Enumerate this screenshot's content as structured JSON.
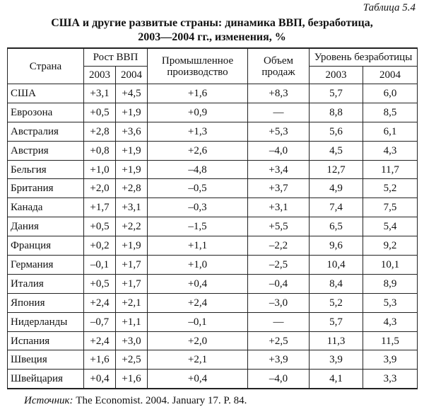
{
  "caption": "Таблица 5.4",
  "title": [
    "США и другие развитые страны: динамика ВВП, безработица,",
    "2003—2004 гг., изменения, %"
  ],
  "table": {
    "header": {
      "country": "Страна",
      "gdp": "Рост ВВП",
      "industry": "Промышленное производство",
      "sales": "Объем продаж",
      "unemployment": "Уровень безработицы",
      "years": [
        "2003",
        "2004",
        "2003",
        "2004"
      ]
    },
    "rows": [
      [
        "США",
        "+3,1",
        "+4,5",
        "+1,6",
        "+8,3",
        "5,7",
        "6,0"
      ],
      [
        "Еврозона",
        "+0,5",
        "+1,9",
        "+0,9",
        "—",
        "8,8",
        "8,5"
      ],
      [
        "Австралия",
        "+2,8",
        "+3,6",
        "+1,3",
        "+5,3",
        "5,6",
        "6,1"
      ],
      [
        "Австрия",
        "+0,8",
        "+1,9",
        "+2,6",
        "–4,0",
        "4,5",
        "4,3"
      ],
      [
        "Бельгия",
        "+1,0",
        "+1,9",
        "–4,8",
        "+3,4",
        "12,7",
        "11,7"
      ],
      [
        "Британия",
        "+2,0",
        "+2,8",
        "–0,5",
        "+3,7",
        "4,9",
        "5,2"
      ],
      [
        "Канада",
        "+1,7",
        "+3,1",
        "–0,3",
        "+3,1",
        "7,4",
        "7,5"
      ],
      [
        "Дания",
        "+0,5",
        "+2,2",
        "–1,5",
        "+5,5",
        "6,5",
        "5,4"
      ],
      [
        "Франция",
        "+0,2",
        "+1,9",
        "+1,1",
        "–2,2",
        "9,6",
        "9,2"
      ],
      [
        "Германия",
        "–0,1",
        "+1,7",
        "+1,0",
        "–2,5",
        "10,4",
        "10,1"
      ],
      [
        "Италия",
        "+0,5",
        "+1,7",
        "+0,4",
        "–0,4",
        "8,4",
        "8,9"
      ],
      [
        "Япония",
        "+2,4",
        "+2,1",
        "+2,4",
        "–3,0",
        "5,2",
        "5,3"
      ],
      [
        "Нидерланды",
        "–0,7",
        "+1,1",
        "–0,1",
        "—",
        "5,7",
        "4,3"
      ],
      [
        "Испания",
        "+2,4",
        "+3,0",
        "+2,0",
        "+2,5",
        "11,3",
        "11,5"
      ],
      [
        "Швеция",
        "+1,6",
        "+2,5",
        "+2,1",
        "+3,9",
        "3,9",
        "3,9"
      ],
      [
        "Швейцария",
        "+0,4",
        "+1,6",
        "+0,4",
        "–4,0",
        "4,1",
        "3,3"
      ]
    ]
  },
  "source": {
    "label": "Источник:",
    "text": "The Economist. 2004. January 17. P. 84."
  }
}
